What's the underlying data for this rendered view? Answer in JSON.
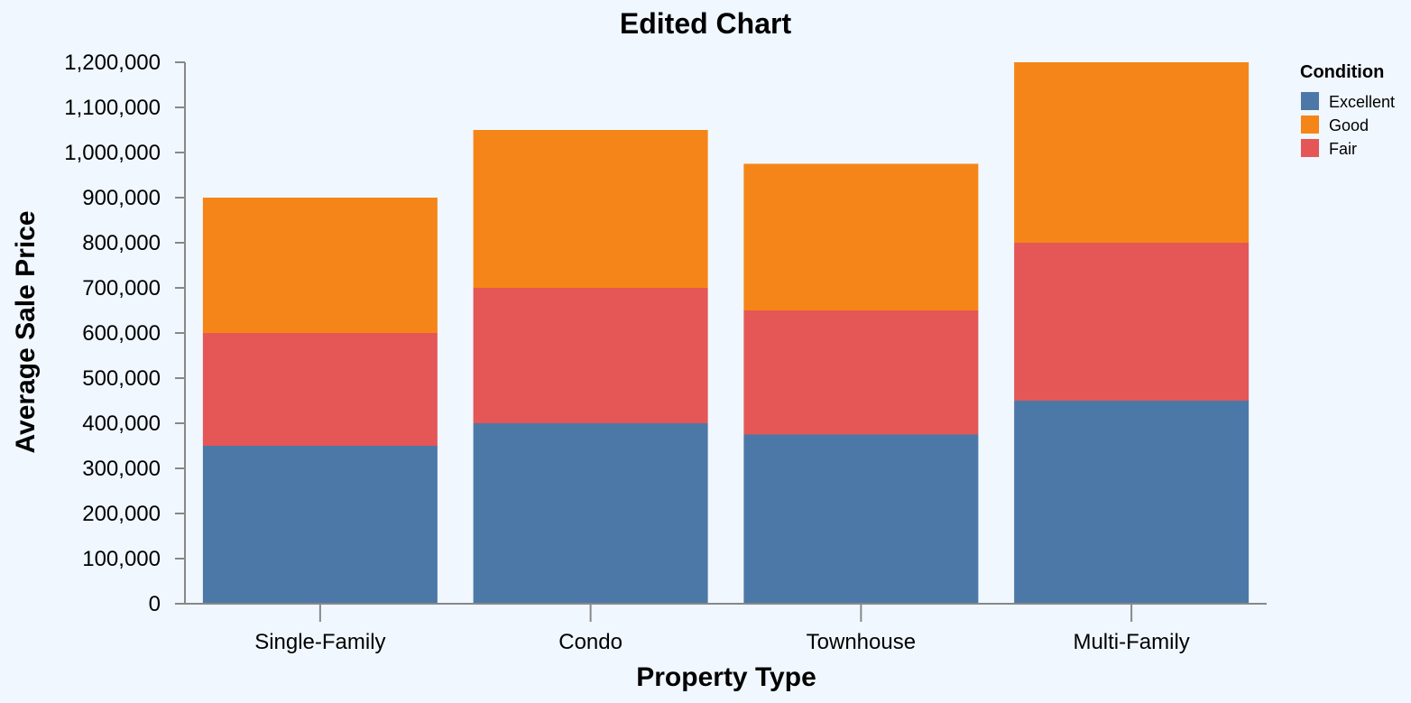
{
  "chart_data": {
    "type": "bar",
    "stacked": true,
    "title": "Edited Chart",
    "xlabel": "Property Type",
    "ylabel": "Average Sale Price",
    "categories": [
      "Single-Family",
      "Condo",
      "Townhouse",
      "Multi-Family"
    ],
    "ylim": [
      0,
      1200000
    ],
    "yticks": [
      "0",
      "100,000",
      "200,000",
      "300,000",
      "400,000",
      "500,000",
      "600,000",
      "700,000",
      "800,000",
      "900,000",
      "1,000,000",
      "1,100,000",
      "1,200,000"
    ],
    "stack_order": [
      "Excellent",
      "Fair",
      "Good"
    ],
    "series": [
      {
        "name": "Excellent",
        "color": "#4c78a8",
        "values": [
          350000,
          400000,
          375000,
          450000
        ]
      },
      {
        "name": "Good",
        "color": "#f58518",
        "values": [
          300000,
          350000,
          325000,
          400000
        ]
      },
      {
        "name": "Fair",
        "color": "#e45756",
        "values": [
          250000,
          300000,
          275000,
          350000
        ]
      }
    ],
    "legend": {
      "title": "Condition",
      "position": "top-right"
    },
    "grid": false,
    "background": "#f0f7ff"
  }
}
